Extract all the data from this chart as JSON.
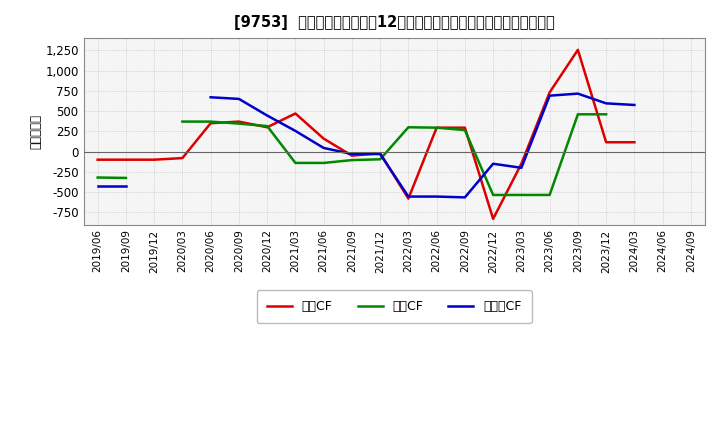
{
  "title": "[9753]  キャッシュフローの12か月移動合計の対前年同期増減額の推移",
  "ylabel": "（百万円）",
  "background_color": "#ffffff",
  "plot_bg_color": "#f5f5f5",
  "grid_color": "#cccccc",
  "x_labels": [
    "2019/06",
    "2019/09",
    "2019/12",
    "2020/03",
    "2020/06",
    "2020/09",
    "2020/12",
    "2021/03",
    "2021/06",
    "2021/09",
    "2021/12",
    "2022/03",
    "2022/06",
    "2022/09",
    "2022/12",
    "2023/03",
    "2023/06",
    "2023/09",
    "2023/12",
    "2024/03",
    "2024/06",
    "2024/09"
  ],
  "operating_cf": [
    -100,
    -100,
    -100,
    -80,
    350,
    370,
    300,
    470,
    160,
    -50,
    -20,
    -580,
    295,
    295,
    -830,
    -150,
    730,
    1255,
    115,
    115,
    null,
    null
  ],
  "investing_cf": [
    -320,
    -325,
    null,
    370,
    370,
    345,
    315,
    -140,
    -140,
    -105,
    -95,
    300,
    295,
    265,
    -535,
    -535,
    -535,
    460,
    460,
    null,
    null,
    null
  ],
  "free_cf": [
    -430,
    -430,
    null,
    null,
    670,
    650,
    445,
    255,
    45,
    -30,
    -30,
    -555,
    -555,
    -565,
    -150,
    -200,
    690,
    715,
    595,
    575,
    null,
    null
  ],
  "line_colors": {
    "operating": "#dd0000",
    "investing": "#008800",
    "free": "#0000cc"
  },
  "ylim": [
    -900,
    1400
  ],
  "yticks": [
    -750,
    -500,
    -250,
    0,
    250,
    500,
    750,
    1000,
    1250
  ],
  "legend_labels": [
    "営業CF",
    "投資CF",
    "フリーCF"
  ]
}
